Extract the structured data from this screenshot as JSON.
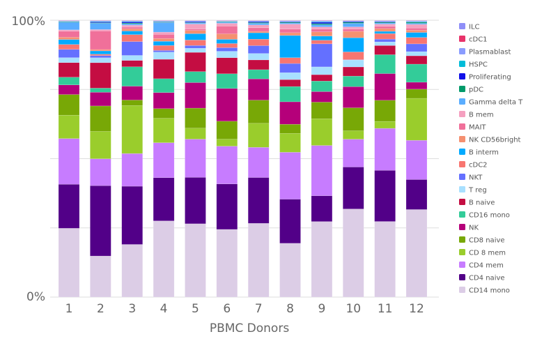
{
  "chart_data": {
    "type": "bar",
    "stacked": true,
    "normalized": true,
    "title": "",
    "xlabel": "PBMC Donors",
    "ylabel": "",
    "ylim": [
      0,
      100
    ],
    "ytick_labels": [
      "0%",
      "100%"
    ],
    "grid": true,
    "legend_position": "right",
    "categories": [
      "1",
      "2",
      "3",
      "4",
      "5",
      "6",
      "7",
      "8",
      "9",
      "10",
      "11",
      "12"
    ],
    "series": [
      {
        "name": "CD14 mono",
        "color": "#dccde6",
        "values": [
          25,
          15,
          19,
          27.5,
          26.7,
          24.4,
          26.4,
          19.4,
          27.2,
          31.7,
          27.2,
          31.5
        ]
      },
      {
        "name": "CD4 naive",
        "color": "#520088",
        "values": [
          16,
          25.7,
          21,
          15.6,
          16.9,
          16.4,
          16.4,
          15.9,
          9.3,
          15.1,
          18.4,
          10.8
        ]
      },
      {
        "name": "CD4 mem",
        "color": "#c77cff",
        "values": [
          16.6,
          9.8,
          11.8,
          12.6,
          13.9,
          13.6,
          10.8,
          16.9,
          18.1,
          10,
          15.1,
          14.1
        ]
      },
      {
        "name": "CD 8 mem",
        "color": "#9acd2c",
        "values": [
          8.5,
          10,
          17.3,
          8.8,
          4,
          2.5,
          8.6,
          6.8,
          9.6,
          3,
          2.5,
          15.1
        ]
      },
      {
        "name": "CD8 naive",
        "color": "#78a806",
        "values": [
          7.5,
          9.3,
          2,
          3.5,
          7.3,
          6.5,
          8.3,
          3.3,
          6,
          8.3,
          7.6,
          3.3
        ]
      },
      {
        "name": "NK",
        "color": "#b5007a",
        "values": [
          3.5,
          5,
          5,
          5.8,
          9.3,
          11.8,
          7.6,
          8.1,
          3.8,
          7.6,
          9.6,
          2.5
        ]
      },
      {
        "name": "CD16 mono",
        "color": "#33cc99",
        "values": [
          2.8,
          1.5,
          7,
          5,
          4,
          5.3,
          3.3,
          5.5,
          3.8,
          3.8,
          6.8,
          6.5
        ]
      },
      {
        "name": "B naive",
        "color": "#c40d42",
        "values": [
          5.3,
          9.3,
          2.3,
          7,
          7,
          5.8,
          3.5,
          2.5,
          2.3,
          3.3,
          3.3,
          3
        ]
      },
      {
        "name": "T reg",
        "color": "#a8e0ff",
        "values": [
          1.8,
          1.8,
          1.8,
          2.6,
          1.5,
          2.3,
          2.3,
          2.5,
          2.8,
          2.5,
          1.3,
          1.5
        ]
      },
      {
        "name": "NKT",
        "color": "#6470ff",
        "values": [
          3,
          0.8,
          5,
          0.6,
          1,
          1.3,
          2.8,
          3.3,
          8.3,
          0.1,
          1,
          2.8
        ]
      },
      {
        "name": "cDC2",
        "color": "#f87670",
        "values": [
          1.8,
          0.5,
          2.5,
          1.8,
          2,
          1.5,
          2.3,
          2.1,
          1.3,
          2.8,
          2,
          2.3
        ]
      },
      {
        "name": "B interm",
        "color": "#00aaff",
        "values": [
          1.8,
          1.2,
          1.3,
          1.5,
          2.3,
          1.5,
          2.3,
          8,
          1.5,
          5.1,
          0.8,
          1.8
        ]
      },
      {
        "name": "NK CD56bright",
        "color": "#f59070",
        "values": [
          0.8,
          0.5,
          0.8,
          1,
          1.2,
          2,
          0.5,
          1,
          1.5,
          2.3,
          1,
          0.8
        ]
      },
      {
        "name": "MAIT",
        "color": "#f0709a",
        "values": [
          2.2,
          6.8,
          0.6,
          1.5,
          0.5,
          2.8,
          1.3,
          1.3,
          1,
          0.8,
          0.8,
          0.8
        ]
      },
      {
        "name": "B mem",
        "color": "#f5a0c0",
        "values": [
          0.5,
          0.5,
          0.7,
          0.8,
          1.8,
          1,
          1,
          1.8,
          0.8,
          0.8,
          0.8,
          1.3
        ]
      },
      {
        "name": "Gamma delta T",
        "color": "#5aadff",
        "values": [
          2.8,
          2.3,
          0.5,
          3.5,
          0.4,
          0.4,
          0.6,
          0.4,
          0.8,
          1.3,
          0.4,
          0.4
        ]
      },
      {
        "name": "pDC",
        "color": "#009a6a",
        "values": [
          0.2,
          0.2,
          0.3,
          0.2,
          0.2,
          0.2,
          0.3,
          0.3,
          0.4,
          0.4,
          0.3,
          0.4
        ]
      },
      {
        "name": "Proliferating",
        "color": "#1010e8",
        "values": [
          0.1,
          0.3,
          0.4,
          0.1,
          0.3,
          0.1,
          0.3,
          0.2,
          0.5,
          0.3,
          0.2,
          0.1
        ]
      },
      {
        "name": "HSPC",
        "color": "#00bcd8",
        "values": [
          0.1,
          0.2,
          0.2,
          0.1,
          0.1,
          0.1,
          0.1,
          0.1,
          0.2,
          0.1,
          0.1,
          0.2
        ]
      },
      {
        "name": "Plasmablast",
        "color": "#8a9cff",
        "values": [
          0.1,
          0.2,
          0.2,
          0.2,
          0.2,
          0.1,
          0.2,
          0.2,
          0.3,
          0.1,
          0.2,
          0.2
        ]
      },
      {
        "name": "cDC1",
        "color": "#e8336a",
        "values": [
          0.1,
          0.1,
          0.1,
          0.1,
          0.1,
          0.1,
          0.1,
          0.1,
          0.1,
          0.1,
          0.1,
          0.1
        ]
      },
      {
        "name": "ILC",
        "color": "#8f8ff8",
        "values": [
          0.1,
          0.1,
          0.1,
          0.1,
          0.1,
          0.1,
          0.1,
          0.1,
          0.1,
          0.1,
          0.1,
          0.1
        ]
      }
    ]
  }
}
